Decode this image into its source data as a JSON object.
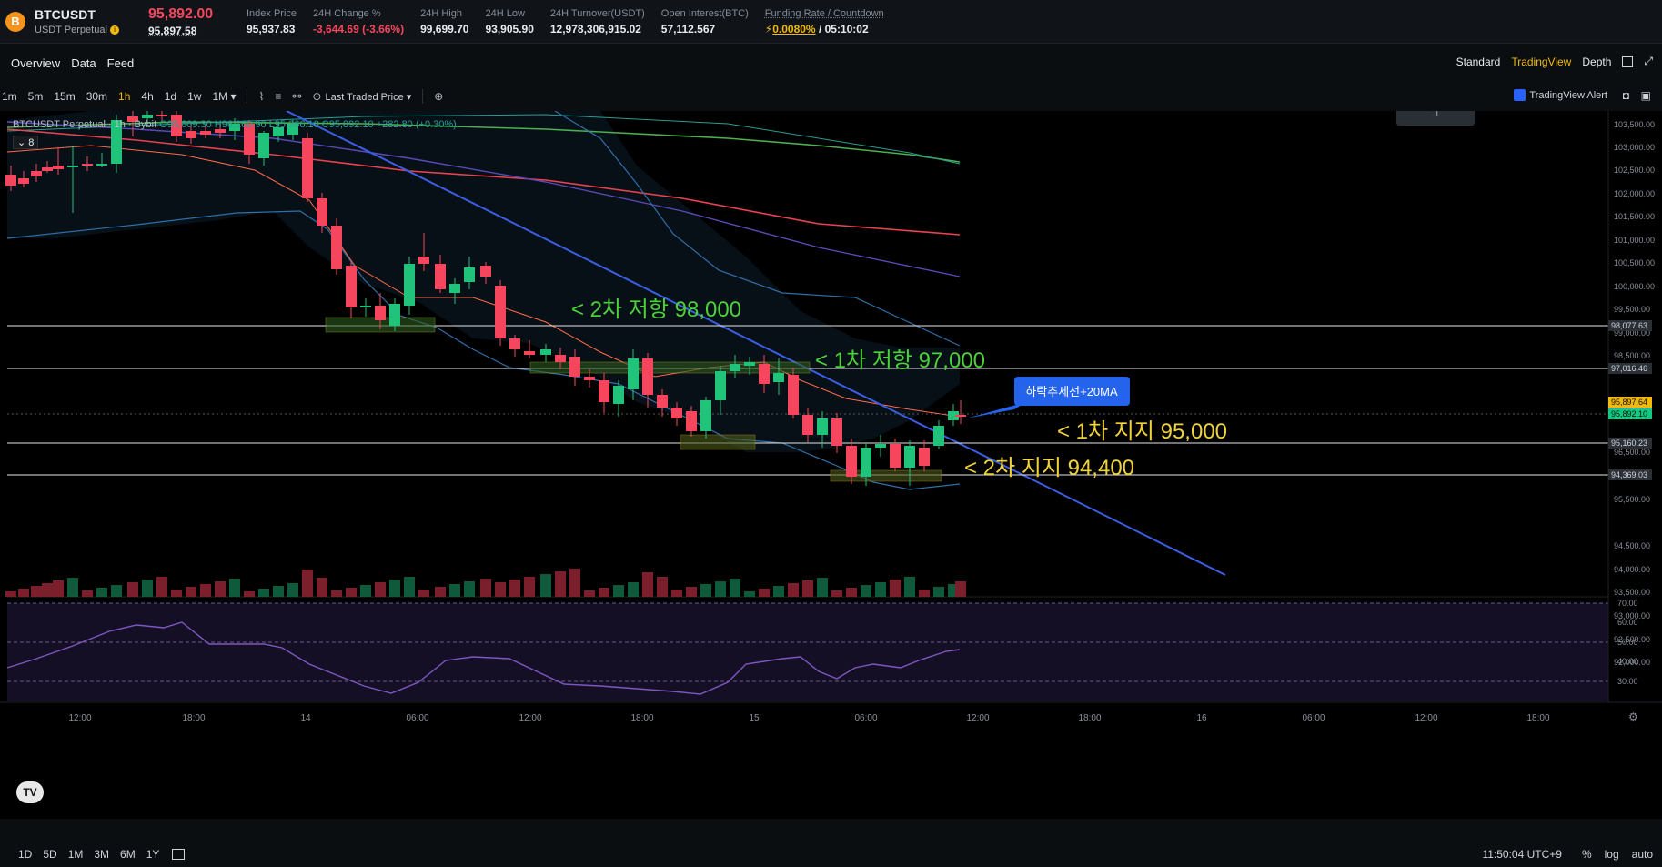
{
  "ticker": {
    "coin_letter": "B",
    "symbol": "BTCUSDT",
    "contract": "USDT Perpetual",
    "info": "i",
    "last_price": "95,892.00",
    "mark_price": "95,897.58",
    "stats": [
      {
        "label": "Index Price",
        "value": "95,937.83",
        "style": ""
      },
      {
        "label": "24H Change %",
        "value": "-3,644.69 (-3.66%)",
        "style": "red"
      },
      {
        "label": "24H High",
        "value": "99,699.70",
        "style": ""
      },
      {
        "label": "24H Low",
        "value": "93,905.90",
        "style": ""
      },
      {
        "label": "24H Turnover(USDT)",
        "value": "12,978,306,915.02",
        "style": ""
      },
      {
        "label": "Open Interest(BTC)",
        "value": "57,112.567",
        "style": ""
      }
    ],
    "funding_label": "Funding Rate / Countdown",
    "funding_rate": "0.0080%",
    "countdown": "/ 05:10:02"
  },
  "subnav": {
    "tabs": [
      "Overview",
      "Data",
      "Feed"
    ],
    "views": [
      "Standard",
      "TradingView",
      "Depth"
    ],
    "active_view": "TradingView"
  },
  "toolbar": {
    "intervals": [
      "1m",
      "5m",
      "15m",
      "30m",
      "1h",
      "4h",
      "1d",
      "1w",
      "1M ▾"
    ],
    "active_interval": "1h",
    "price_type": "Last Traded Price ▾",
    "alert": "TradingView Alert"
  },
  "chart": {
    "legend": "BTCUSDT Perpetual · 1h · Bybit",
    "ohlc": "O95,609.30 H96,160.90 L95,366.10 C95,892.10 +282.80 (+0.30%)",
    "indicator_count": "8",
    "annotations": {
      "res2": "< 2차 저항 98,000",
      "res1": "< 1차 저항 97,000",
      "sup1": "< 1차 지지 95,000",
      "sup2": "< 2차 지지 94,400",
      "trend": "하락추세선+20MA"
    },
    "y_ticks": [
      "103,500.00",
      "103,000.00",
      "102,500.00",
      "102,000.00",
      "101,500.00",
      "101,000.00",
      "100,500.00",
      "100,000.00",
      "99,500.00",
      "99,000.00",
      "98,500.00",
      "97,500.00",
      "96,500.00",
      "95,500.00",
      "94,500.00",
      "94,000.00",
      "93,500.00",
      "93,000.00",
      "92,500.00",
      "92,000.00"
    ],
    "level_labels": [
      "98,077.63",
      "97,016.46",
      "95,897.64",
      "95,892.10",
      "95,160.23",
      "94,369.03"
    ],
    "rsi_ticks": [
      "70.00",
      "60.00",
      "50.00",
      "40.00",
      "30.00"
    ],
    "x_ticks": [
      "12:00",
      "18:00",
      "14",
      "06:00",
      "12:00",
      "18:00",
      "15",
      "06:00",
      "12:00",
      "18:00",
      "16",
      "06:00",
      "12:00",
      "18:00"
    ],
    "tv_logo": "TV"
  },
  "bottom": {
    "ranges": [
      "1D",
      "5D",
      "1M",
      "3M",
      "6M",
      "1Y"
    ],
    "time": "11:50:04 UTC+9",
    "options": [
      "%",
      "log",
      "auto"
    ]
  }
}
